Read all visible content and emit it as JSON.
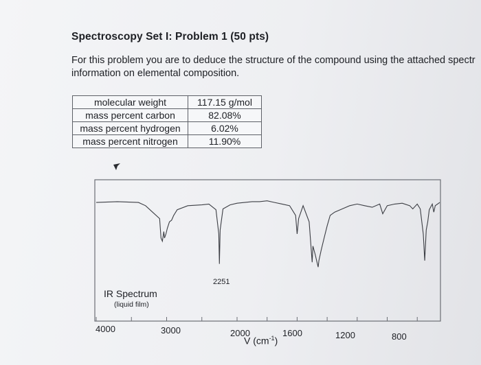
{
  "problem": {
    "title": "Spectroscopy Set I: Problem 1 (50 pts)",
    "intro_line1": "For this problem you are to deduce the structure of the compound using the attached spectr",
    "intro_line2": "information on elemental composition."
  },
  "properties": [
    {
      "label": "molecular weight",
      "value": "117.15 g/mol"
    },
    {
      "label": "mass percent carbon",
      "value": "82.08%"
    },
    {
      "label": "mass percent hydrogen",
      "value": "6.02%"
    },
    {
      "label": "mass percent nitrogen",
      "value": "11.90%"
    }
  ],
  "spectrum": {
    "title": "IR Spectrum",
    "subtitle": "(liquid film)",
    "peak_label": "2251",
    "x_ticks": [
      "4000",
      "3000",
      "2000",
      "1600",
      "1200",
      "800"
    ],
    "x_axis_symbol": "V",
    "x_axis_unit_base": "(cm",
    "x_axis_unit_exp": "-1",
    "x_axis_unit_close": ")"
  },
  "chart_data": {
    "type": "line",
    "title": "IR Spectrum",
    "subtitle": "(liquid film)",
    "xlabel": "V (cm-1)",
    "ylabel": "",
    "x_tick_labels": [
      "4000",
      "3000",
      "2000",
      "1600",
      "1200",
      "800"
    ],
    "annotations": [
      "2251"
    ],
    "series": [
      {
        "x": [
          4000,
          3700,
          3400,
          3300,
          3200,
          3100,
          3080,
          3060,
          3040,
          3030,
          3010,
          2990,
          2960,
          2930,
          2900,
          2850,
          2700,
          2500,
          2400,
          2300,
          2260,
          2251,
          2240,
          2200,
          2100,
          2000,
          1950,
          1900,
          1850,
          1800,
          1750,
          1700,
          1650,
          1610,
          1600,
          1590,
          1560,
          1520,
          1500,
          1495,
          1480,
          1460,
          1455,
          1440,
          1420,
          1400,
          1380,
          1350,
          1300,
          1250,
          1200,
          1150,
          1100,
          1050,
          1030,
          1000,
          950,
          900,
          850,
          830,
          800,
          780,
          760,
          750,
          740,
          730,
          720,
          700,
          690,
          680,
          650
        ],
        "y": [
          94,
          95,
          94,
          90,
          82,
          74,
          50,
          46,
          58,
          50,
          55,
          62,
          70,
          72,
          78,
          85,
          90,
          91,
          92,
          85,
          55,
          18,
          60,
          86,
          91,
          93,
          94,
          95,
          95,
          96,
          94,
          92,
          90,
          78,
          55,
          74,
          90,
          70,
          20,
          40,
          30,
          14,
          22,
          35,
          50,
          65,
          78,
          82,
          86,
          90,
          92,
          90,
          88,
          92,
          80,
          90,
          92,
          93,
          90,
          86,
          92,
          86,
          55,
          22,
          60,
          70,
          85,
          92,
          82,
          90,
          94
        ]
      }
    ],
    "ylim": [
      0,
      100
    ],
    "grid": false
  }
}
